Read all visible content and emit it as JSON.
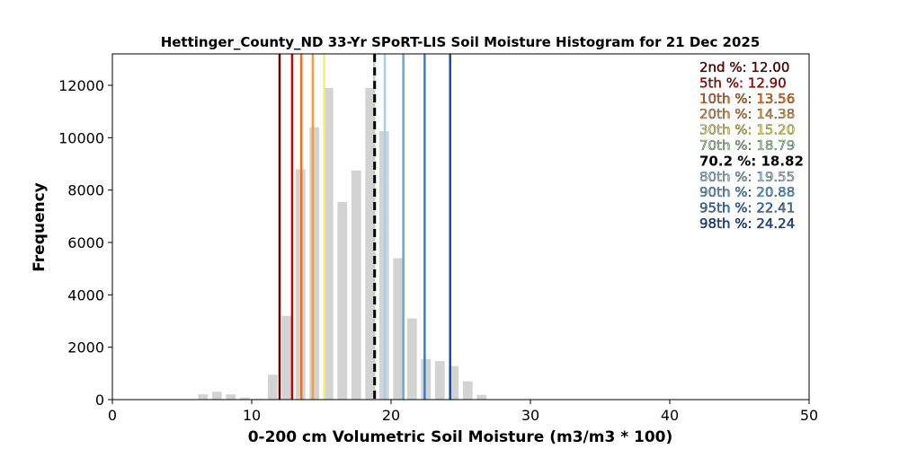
{
  "chart_data": {
    "type": "bar",
    "title": "Hettinger_County_ND 33-Yr SPoRT-LIS Soil Moisture Histogram for 21 Dec 2025",
    "xlabel": "0-200 cm Volumetric Soil Moisture (m3/m3 * 100)",
    "ylabel": "Frequency",
    "xlim": [
      0,
      50
    ],
    "ylim": [
      0,
      13200
    ],
    "xticks": [
      "0",
      "10",
      "20",
      "30",
      "40",
      "50"
    ],
    "yticks": [
      "0",
      "2000",
      "4000",
      "6000",
      "8000",
      "10000",
      "12000"
    ],
    "bar_color": "#d3d3d3",
    "bars": [
      {
        "x": 6.5,
        "value": 200
      },
      {
        "x": 7.5,
        "value": 300
      },
      {
        "x": 8.5,
        "value": 200
      },
      {
        "x": 9.5,
        "value": 80
      },
      {
        "x": 10.5,
        "value": 30
      },
      {
        "x": 11.5,
        "value": 950
      },
      {
        "x": 12.5,
        "value": 3200
      },
      {
        "x": 13.5,
        "value": 8800
      },
      {
        "x": 14.5,
        "value": 10400
      },
      {
        "x": 15.5,
        "value": 11900
      },
      {
        "x": 16.5,
        "value": 7550
      },
      {
        "x": 17.5,
        "value": 8750
      },
      {
        "x": 18.5,
        "value": 11900
      },
      {
        "x": 19.5,
        "value": 10250
      },
      {
        "x": 20.5,
        "value": 5400
      },
      {
        "x": 21.5,
        "value": 3100
      },
      {
        "x": 22.5,
        "value": 1550
      },
      {
        "x": 23.5,
        "value": 1470
      },
      {
        "x": 24.5,
        "value": 1280
      },
      {
        "x": 25.5,
        "value": 700
      },
      {
        "x": 26.5,
        "value": 180
      }
    ],
    "percentile_lines": [
      {
        "label": "2nd %",
        "value": 12.0,
        "value_text": "12.00",
        "color": "#6b0000"
      },
      {
        "label": "5th %",
        "value": 12.9,
        "value_text": "12.90",
        "color": "#c80000"
      },
      {
        "label": "10th %",
        "value": 13.56,
        "value_text": "13.56",
        "color": "#f07020"
      },
      {
        "label": "20th %",
        "value": 14.38,
        "value_text": "14.38",
        "color": "#f0a040"
      },
      {
        "label": "30th %",
        "value": 15.2,
        "value_text": "15.20",
        "color": "#f8f060"
      },
      {
        "label": "70th %",
        "value": 18.79,
        "value_text": "18.79",
        "color": "#b0e0b0"
      },
      {
        "label": "70.2 %",
        "value": 18.82,
        "value_text": "18.82",
        "color": "#000000",
        "current": true
      },
      {
        "label": "80th %",
        "value": 19.55,
        "value_text": "19.55",
        "color": "#a0d0f0"
      },
      {
        "label": "90th %",
        "value": 20.88,
        "value_text": "20.88",
        "color": "#60a8e8"
      },
      {
        "label": "95th %",
        "value": 22.41,
        "value_text": "22.41",
        "color": "#3080d8"
      },
      {
        "label": "98th %",
        "value": 24.24,
        "value_text": "24.24",
        "color": "#1050b0"
      }
    ],
    "legend_placement": "top-right"
  }
}
